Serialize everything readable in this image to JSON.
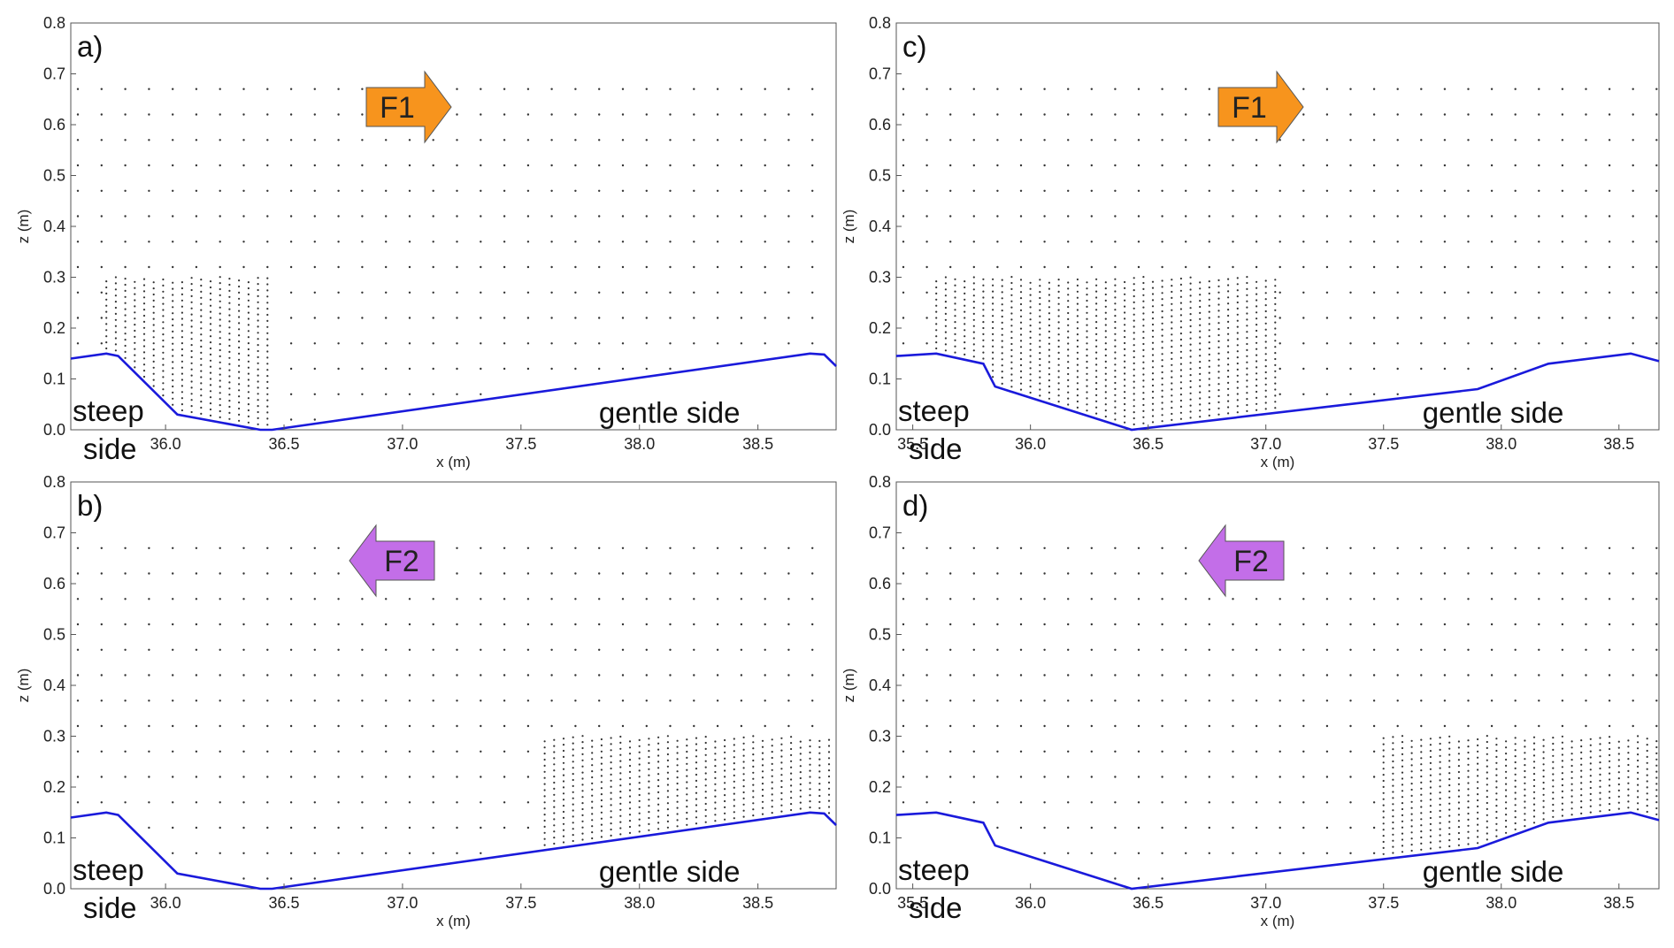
{
  "chart_data": [
    {
      "panel": "a)",
      "type": "scatter",
      "xlabel": "x (m)",
      "ylabel": "z (m)",
      "xlim": [
        35.6,
        38.83
      ],
      "ylim": [
        0,
        0.8
      ],
      "xticks": [
        "36.0",
        "36.5",
        "37.0",
        "37.5",
        "38.0",
        "38.5"
      ],
      "yticks": [
        "0.0",
        "0.1",
        "0.2",
        "0.3",
        "0.4",
        "0.5",
        "0.6",
        "0.7",
        "0.8"
      ],
      "bed": {
        "x": [
          35.6,
          35.75,
          35.8,
          36.05,
          36.4,
          36.45,
          38.72,
          38.78,
          38.83
        ],
        "z": [
          0.14,
          0.15,
          0.145,
          0.03,
          0.0,
          0.0,
          0.15,
          0.148,
          0.125
        ]
      },
      "flow_label": "F1",
      "flow_direction": "right",
      "flow_color": "#f7941d",
      "left_label_line1": "steep",
      "left_label_line2": "side",
      "right_label": "gentle side",
      "dense_zone": {
        "x": [
          35.75,
          36.45
        ],
        "top": 0.3
      },
      "bed_color": "#1a1adb"
    },
    {
      "panel": "b)",
      "type": "scatter",
      "xlabel": "x (m)",
      "ylabel": "z (m)",
      "xlim": [
        35.6,
        38.83
      ],
      "ylim": [
        0,
        0.8
      ],
      "xticks": [
        "36.0",
        "36.5",
        "37.0",
        "37.5",
        "38.0",
        "38.5"
      ],
      "yticks": [
        "0.0",
        "0.1",
        "0.2",
        "0.3",
        "0.4",
        "0.5",
        "0.6",
        "0.7",
        "0.8"
      ],
      "bed": {
        "x": [
          35.6,
          35.75,
          35.8,
          36.05,
          36.4,
          36.45,
          38.72,
          38.78,
          38.83
        ],
        "z": [
          0.14,
          0.15,
          0.145,
          0.03,
          0.0,
          0.0,
          0.15,
          0.148,
          0.125
        ]
      },
      "flow_label": "F2",
      "flow_direction": "left",
      "flow_color": "#c36ee8",
      "left_label_line1": "steep",
      "left_label_line2": "side",
      "right_label": "gentle side",
      "dense_zone": {
        "x": [
          37.6,
          38.83
        ],
        "top": 0.3
      },
      "bed_color": "#1a1adb"
    },
    {
      "panel": "c)",
      "type": "scatter",
      "xlabel": "x (m)",
      "ylabel": "z (m)",
      "xlim": [
        35.43,
        38.67
      ],
      "ylim": [
        0,
        0.8
      ],
      "xticks": [
        "35.5",
        "36.0",
        "36.5",
        "37.0",
        "37.5",
        "38.0",
        "38.5"
      ],
      "yticks": [
        "0.0",
        "0.1",
        "0.2",
        "0.3",
        "0.4",
        "0.5",
        "0.6",
        "0.7",
        "0.8"
      ],
      "bed": {
        "x": [
          35.43,
          35.6,
          35.8,
          35.85,
          36.43,
          37.9,
          38.2,
          38.55,
          38.67
        ],
        "z": [
          0.145,
          0.15,
          0.13,
          0.085,
          0.0,
          0.08,
          0.13,
          0.15,
          0.135
        ]
      },
      "flow_label": "F1",
      "flow_direction": "right",
      "flow_color": "#f7941d",
      "left_label_line1": "steep",
      "left_label_line2": "side",
      "right_label": "gentle side",
      "dense_zone": {
        "x": [
          35.6,
          37.05
        ],
        "top": 0.3
      },
      "bed_color": "#1a1adb"
    },
    {
      "panel": "d)",
      "type": "scatter",
      "xlabel": "x (m)",
      "ylabel": "z (m)",
      "xlim": [
        35.43,
        38.67
      ],
      "ylim": [
        0,
        0.8
      ],
      "xticks": [
        "35.5",
        "36.0",
        "36.5",
        "37.0",
        "37.5",
        "38.0",
        "38.5"
      ],
      "yticks": [
        "0.0",
        "0.1",
        "0.2",
        "0.3",
        "0.4",
        "0.5",
        "0.6",
        "0.7",
        "0.8"
      ],
      "bed": {
        "x": [
          35.43,
          35.6,
          35.8,
          35.85,
          36.43,
          37.9,
          38.2,
          38.55,
          38.67
        ],
        "z": [
          0.145,
          0.15,
          0.13,
          0.085,
          0.0,
          0.08,
          0.13,
          0.15,
          0.135
        ]
      },
      "flow_label": "F2",
      "flow_direction": "left",
      "flow_color": "#c36ee8",
      "left_label_line1": "steep",
      "left_label_line2": "side",
      "right_label": "gentle side",
      "dense_zone": {
        "x": [
          37.5,
          38.67
        ],
        "top": 0.3
      },
      "bed_color": "#1a1adb"
    }
  ]
}
